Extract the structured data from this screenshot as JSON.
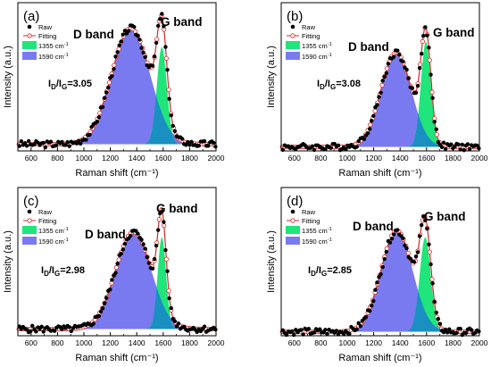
{
  "panels": [
    {
      "letter": "(a)",
      "d_band_label": "D band",
      "g_band_label": "G band",
      "ratio": {
        "I": "I",
        "D": "D",
        "slash": "/I",
        "G": "G",
        "value": "=3.05"
      }
    },
    {
      "letter": "(b)",
      "d_band_label": "D band",
      "g_band_label": "G band",
      "ratio": {
        "I": "I",
        "D": "D",
        "slash": "/I",
        "G": "G",
        "value": "=3.08"
      }
    },
    {
      "letter": "(c)",
      "d_band_label": "D band",
      "g_band_label": "G band",
      "ratio": {
        "I": "I",
        "D": "D",
        "slash": "/I",
        "G": "G",
        "value": "=2.98"
      }
    },
    {
      "letter": "(d)",
      "d_band_label": "D band",
      "g_band_label": "G band",
      "ratio": {
        "I": "I",
        "D": "D",
        "slash": "/I",
        "G": "G",
        "value": "=2.85"
      }
    }
  ],
  "legend": {
    "raw": "Raw",
    "fitting": "Fitting",
    "peak1": "1355 cm",
    "peak2": "1590 cm",
    "superscript": "-1"
  },
  "colors": {
    "d_fill": "#7a7af0",
    "g_fill": "#1fe57a",
    "overlap_fill": "#1a8fc2",
    "fit_line": "#d62828",
    "raw_marker": "#000000"
  },
  "chart_data": [
    {
      "type": "line",
      "title": "(a)",
      "xlabel": "Raman shift (cm⁻¹)",
      "ylabel": "Intensity (a.u.)",
      "xlim": [
        500,
        2000
      ],
      "xticks": [
        600,
        800,
        1000,
        1200,
        1400,
        1600,
        1800,
        2000
      ],
      "ylim": [
        0,
        1.1
      ],
      "annotation": "ID/IG=3.05",
      "baseline": 0.05,
      "peaks": [
        {
          "name": "1355 cm-1",
          "center": 1355,
          "height": 0.86,
          "width": 145
        },
        {
          "name": "1590 cm-1",
          "center": 1590,
          "height": 0.72,
          "width": 38
        }
      ],
      "legend_position": "top-left"
    },
    {
      "type": "line",
      "title": "(b)",
      "xlabel": "Raman shift (cm⁻¹)",
      "ylabel": "Intensity (a.u.)",
      "xlim": [
        500,
        2000
      ],
      "xticks": [
        600,
        800,
        1000,
        1200,
        1400,
        1600,
        1800,
        2000
      ],
      "ylim": [
        0,
        1.1
      ],
      "annotation": "ID/IG=3.08",
      "baseline": 0.03,
      "peaks": [
        {
          "name": "1355 cm-1",
          "center": 1370,
          "height": 0.7,
          "width": 115
        },
        {
          "name": "1590 cm-1",
          "center": 1595,
          "height": 0.78,
          "width": 38
        }
      ],
      "legend_position": "top-left"
    },
    {
      "type": "line",
      "title": "(c)",
      "xlabel": "Raman shift (cm⁻¹)",
      "ylabel": "Intensity (a.u.)",
      "xlim": [
        500,
        2000
      ],
      "xticks": [
        600,
        800,
        1000,
        1200,
        1400,
        1600,
        1800,
        2000
      ],
      "ylim": [
        0,
        1.1
      ],
      "annotation": "ID/IG=2.98",
      "baseline": 0.05,
      "peaks": [
        {
          "name": "1355 cm-1",
          "center": 1375,
          "height": 0.72,
          "width": 135
        },
        {
          "name": "1590 cm-1",
          "center": 1590,
          "height": 0.68,
          "width": 32
        }
      ],
      "legend_position": "top-left"
    },
    {
      "type": "line",
      "title": "(d)",
      "xlabel": "Raman shift (cm⁻¹)",
      "ylabel": "Intensity (a.u.)",
      "xlim": [
        500,
        2000
      ],
      "xticks": [
        600,
        800,
        1000,
        1200,
        1400,
        1600,
        1800,
        2000
      ],
      "ylim": [
        0,
        1.1
      ],
      "annotation": "ID/IG=2.85",
      "baseline": 0.03,
      "peaks": [
        {
          "name": "1355 cm-1",
          "center": 1375,
          "height": 0.75,
          "width": 120
        },
        {
          "name": "1590 cm-1",
          "center": 1590,
          "height": 0.7,
          "width": 42
        }
      ],
      "legend_position": "top-left"
    }
  ]
}
